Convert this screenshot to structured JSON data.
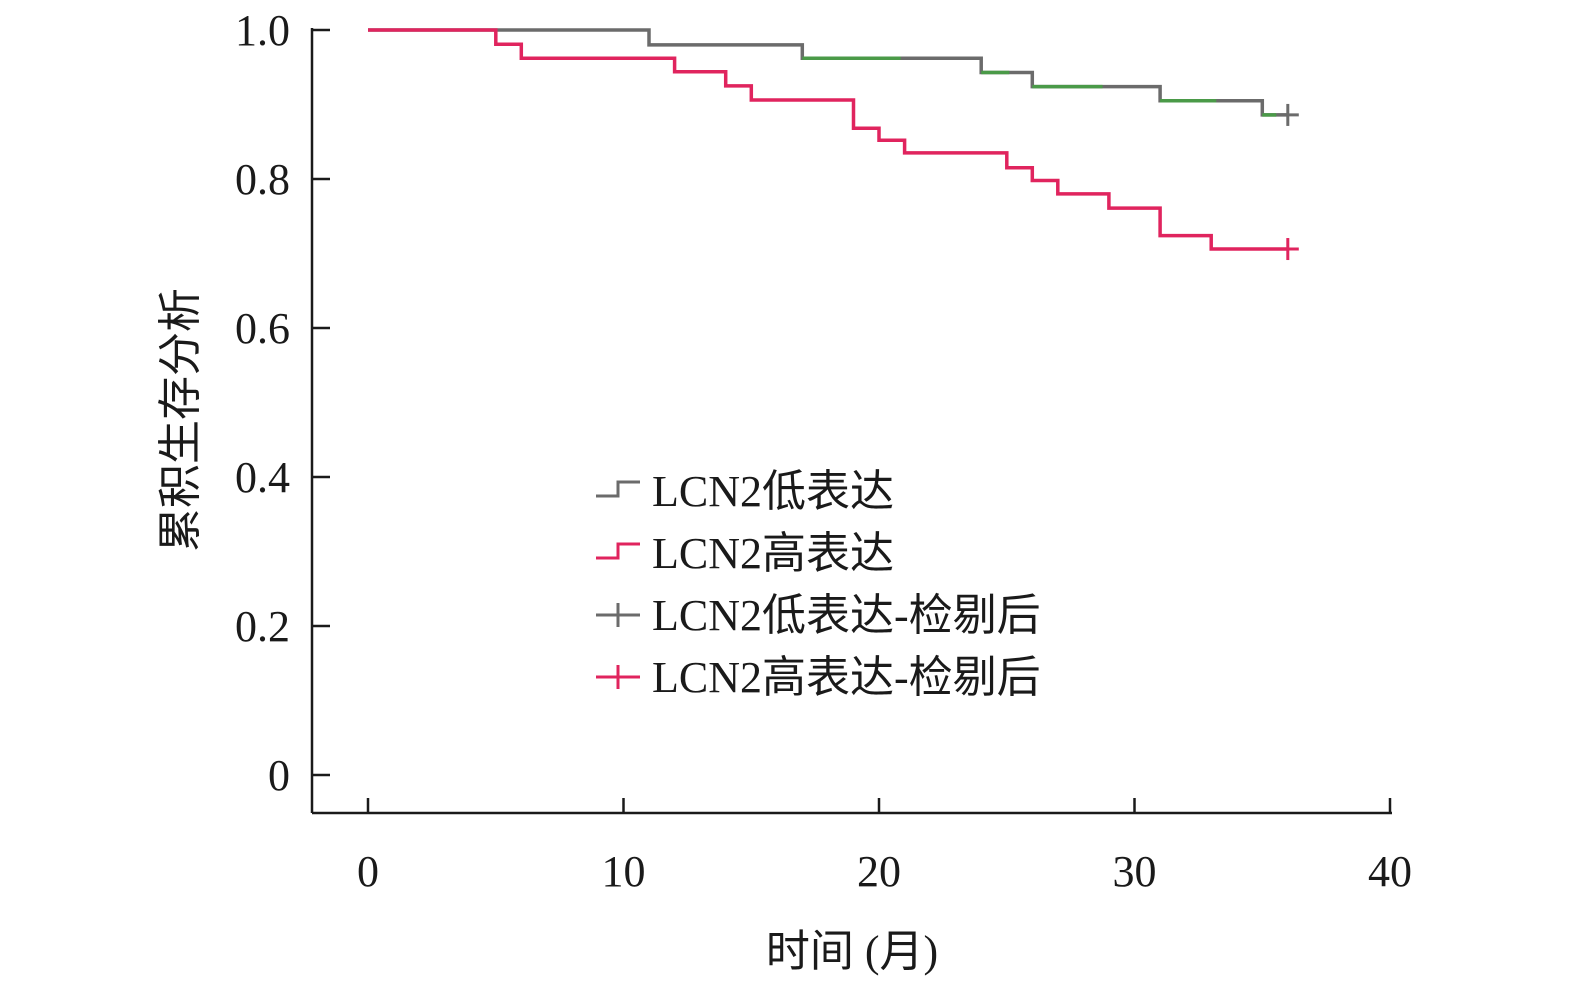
{
  "chart_data": {
    "type": "line",
    "step": true,
    "xlabel": "时间 (月)",
    "ylabel": "累积生存分析",
    "xlim": [
      0,
      40
    ],
    "ylim": [
      0,
      1.0
    ],
    "xticks": [
      0,
      10,
      20,
      30,
      40
    ],
    "yticks": [
      0,
      0.2,
      0.4,
      0.6,
      0.8,
      1.0
    ],
    "xtick_labels": [
      "0",
      "10",
      "20",
      "30",
      "40"
    ],
    "ytick_labels": [
      "0",
      "0.2",
      "0.4",
      "0.6",
      "0.8",
      "1.0"
    ],
    "grid": false,
    "legend_position": "center",
    "legend": [
      {
        "label": "LCN2低表达",
        "kind": "step",
        "color": "#6b6b6b"
      },
      {
        "label": "LCN2高表达",
        "kind": "step",
        "color": "#e0245e"
      },
      {
        "label": "LCN2低表达-检剔后",
        "kind": "censor",
        "color": "#6b6b6b"
      },
      {
        "label": "LCN2高表达-检剔后",
        "kind": "censor",
        "color": "#e0245e"
      }
    ],
    "series": [
      {
        "name": "LCN2低表达",
        "color": "#6b6b6b",
        "segment_colors": {
          "after_x_17": "#4a9a48"
        },
        "x": [
          0,
          11,
          17,
          24,
          26,
          31,
          35,
          36
        ],
        "y": [
          1.0,
          0.98,
          0.962,
          0.943,
          0.924,
          0.905,
          0.886,
          0.886
        ],
        "censor_x": [
          36
        ],
        "censor_y": [
          0.886
        ]
      },
      {
        "name": "LCN2高表达",
        "color": "#e0245e",
        "x": [
          0,
          5,
          6,
          12,
          14,
          15,
          19,
          20,
          21,
          25,
          26,
          27,
          29,
          31,
          33,
          36
        ],
        "y": [
          1.0,
          0.981,
          0.962,
          0.944,
          0.925,
          0.906,
          0.868,
          0.852,
          0.835,
          0.815,
          0.798,
          0.78,
          0.761,
          0.724,
          0.706,
          0.706
        ],
        "censor_x": [
          36
        ],
        "censor_y": [
          0.706
        ]
      }
    ]
  }
}
